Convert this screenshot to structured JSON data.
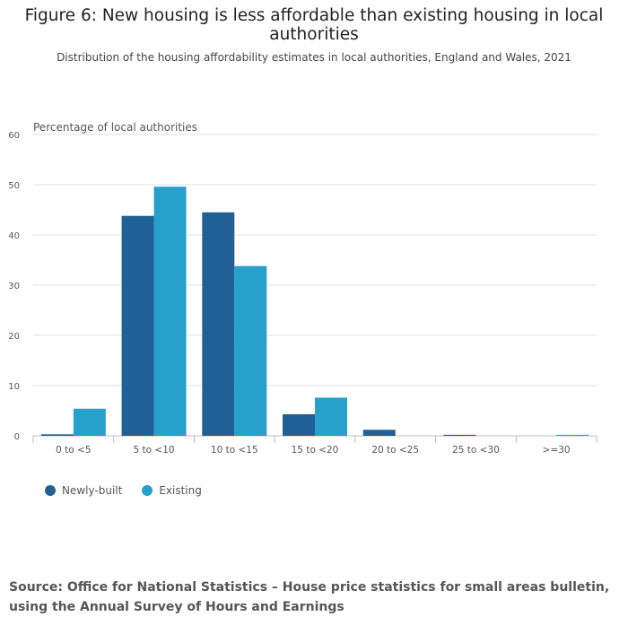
{
  "chart_data": {
    "type": "bar",
    "title": "Figure 6: New housing is less affordable than existing housing in local authorities",
    "subtitle": "Distribution of the housing affordability estimates in local authorities, England and Wales, 2021",
    "ylabel": "Percentage of local authorities",
    "xlabel": "",
    "ylim": [
      0,
      60
    ],
    "yticks": [
      0,
      10,
      20,
      30,
      40,
      50,
      60
    ],
    "categories": [
      "0 to <5",
      "5 to <10",
      "10 to <15",
      "15 to <20",
      "20 to <25",
      "25 to <30",
      ">=30"
    ],
    "series": [
      {
        "name": "Newly-built",
        "color": "#206095",
        "values": [
          0.3,
          43.8,
          44.5,
          4.3,
          1.2,
          0.2,
          0
        ]
      },
      {
        "name": "Existing",
        "color": "#27a0cc",
        "values": [
          5.4,
          49.6,
          33.8,
          7.6,
          0,
          0,
          0.2
        ]
      }
    ],
    "grid": true,
    "legend": "bottom-left"
  },
  "legend_labels": {
    "newly_built": "Newly-built",
    "existing": "Existing"
  },
  "colors": {
    "newly_built": "#206095",
    "existing": "#27a0cc"
  },
  "source": "Source: Office for National Statistics –  House price statistics for small areas bulletin, using the Annual Survey of Hours and Earnings"
}
